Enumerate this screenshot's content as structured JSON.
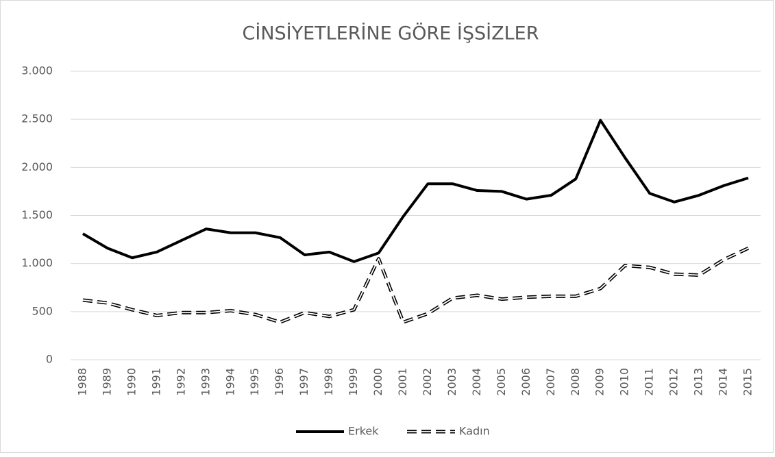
{
  "chart_data": {
    "type": "line",
    "title": "CİNSİYETLERİNE GÖRE İŞSİZLER",
    "categories": [
      "1988",
      "1989",
      "1990",
      "1991",
      "1992",
      "1993",
      "1994",
      "1995",
      "1996",
      "1997",
      "1998",
      "1999",
      "2000",
      "2001",
      "2002",
      "2003",
      "2004",
      "2005",
      "2006",
      "2007",
      "2008",
      "2009",
      "2010",
      "2011",
      "2012",
      "2013",
      "2014",
      "2015"
    ],
    "series": [
      {
        "name": "Erkek",
        "color": "#000000",
        "line_style": "solid",
        "values": [
          1310,
          1160,
          1060,
          1120,
          1240,
          1360,
          1320,
          1320,
          1270,
          1090,
          1120,
          1020,
          1110,
          1490,
          1830,
          1830,
          1760,
          1750,
          1670,
          1710,
          1880,
          2490,
          2100,
          1730,
          1640,
          1710,
          1810,
          1890
        ]
      },
      {
        "name": "Kadın",
        "color": "#000000",
        "line_style": "dashed",
        "values": [
          620,
          590,
          520,
          460,
          490,
          490,
          510,
          470,
          390,
          490,
          450,
          520,
          1050,
          390,
          480,
          640,
          670,
          630,
          650,
          660,
          660,
          740,
          980,
          960,
          890,
          880,
          1040,
          1160
        ]
      }
    ],
    "ylim": [
      0,
      3000
    ],
    "yticks": [
      0,
      500,
      {
        "value": 1000,
        "label": "1.000"
      },
      {
        "value": 1500,
        "label": "1.500"
      },
      {
        "value": 2000,
        "label": "2.000"
      },
      {
        "value": 2500,
        "label": "2.500"
      },
      {
        "value": 3000,
        "label": "3.000"
      }
    ],
    "grid": true,
    "legend": "bottom"
  }
}
